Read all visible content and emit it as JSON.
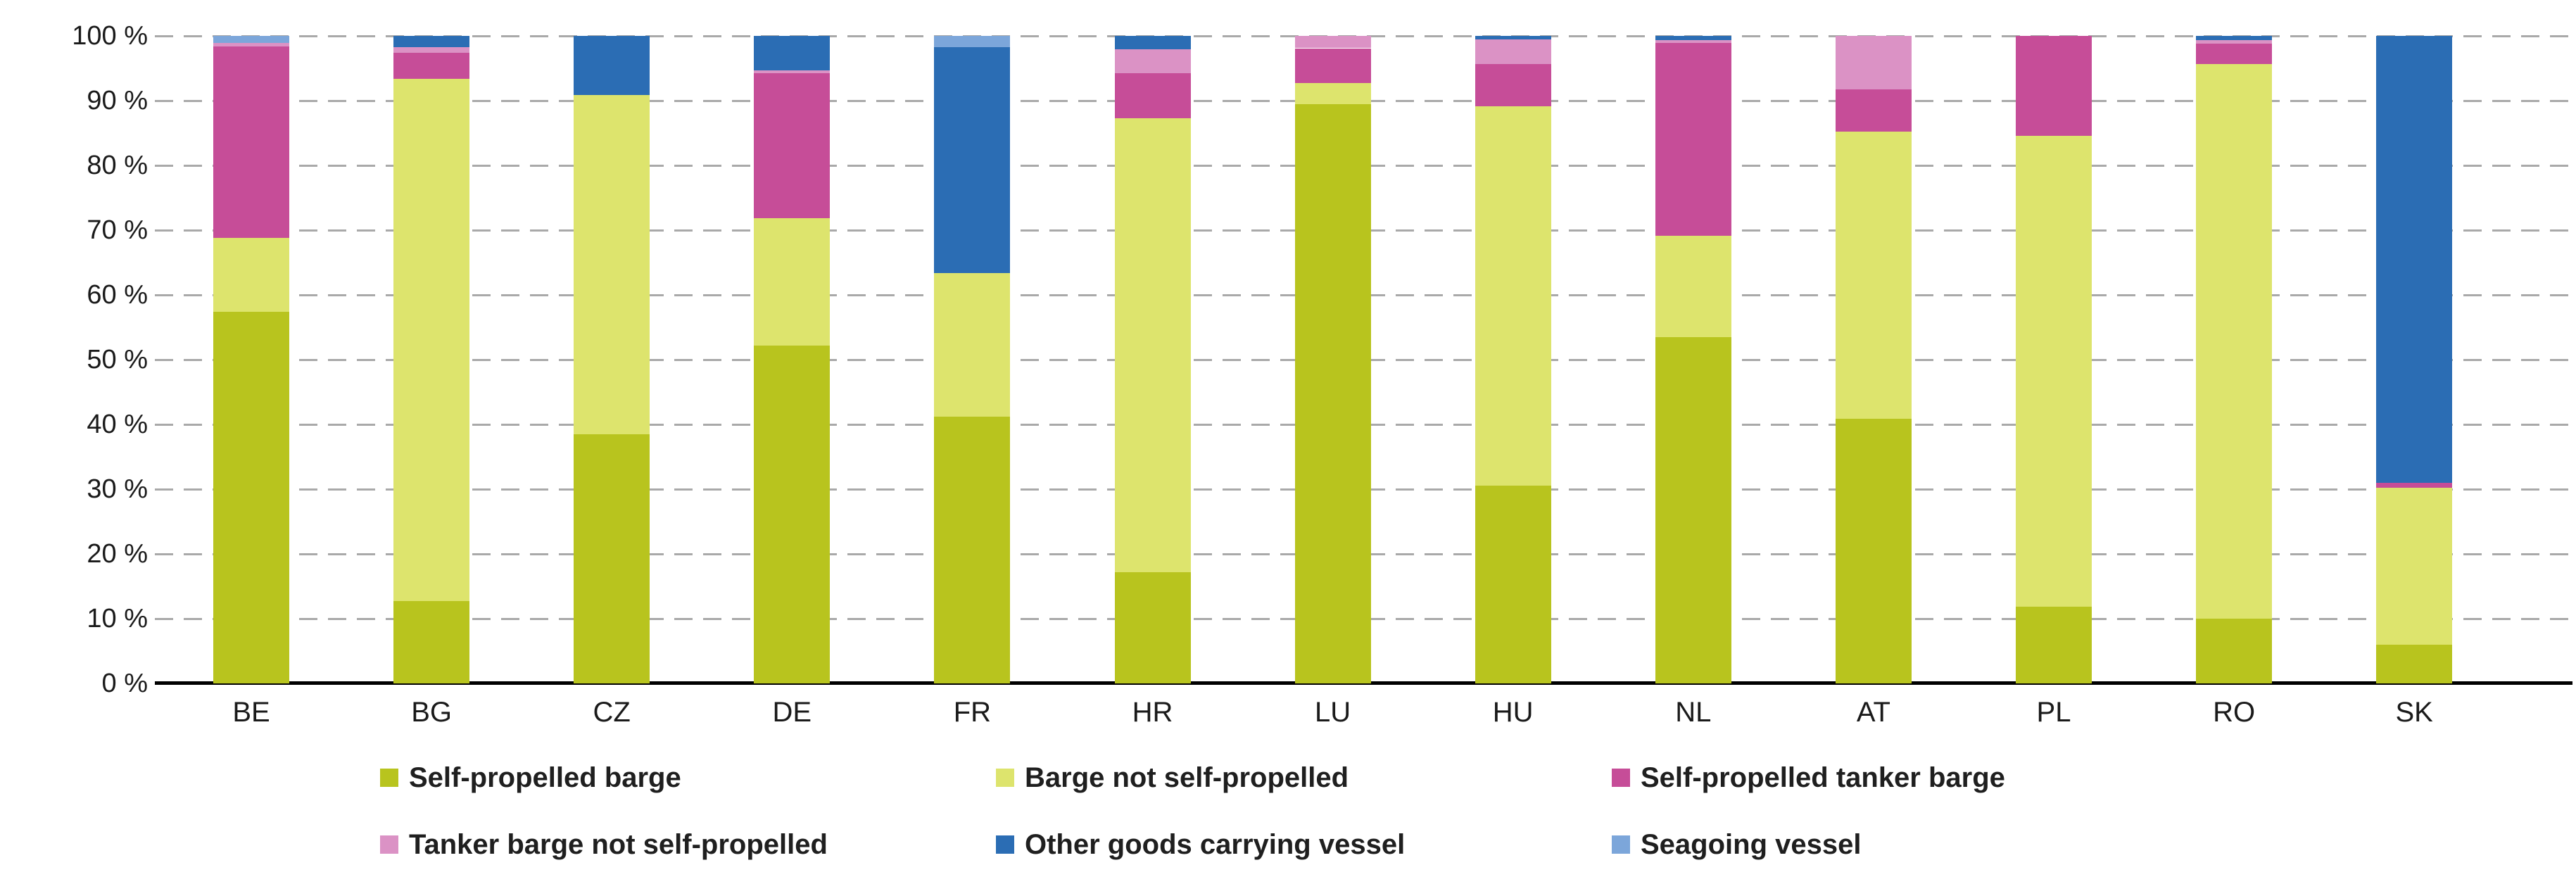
{
  "chart_data": {
    "type": "bar",
    "variant": "stacked-100-percent",
    "title": "",
    "xlabel": "",
    "ylabel": "",
    "ylim": [
      0,
      100
    ],
    "grid": "dashed horizontal gridlines every 10%, solid black baseline at 0%",
    "legend_position": "bottom, two rows, three columns, square markers, bold labels",
    "y_axis": {
      "ticks": [
        "100 %",
        "90 %",
        "80 %",
        "70 %",
        "60 %",
        "50 %",
        "40 %",
        "30 %",
        "20 %",
        "10 %",
        "0 %"
      ]
    },
    "categories": [
      "BE",
      "BG",
      "CZ",
      "DE",
      "FR",
      "HR",
      "LU",
      "HU",
      "NL",
      "AT",
      "PL",
      "RO",
      "SK"
    ],
    "series": [
      {
        "name": "Self-propelled barge",
        "color": "#b8c41e",
        "values": [
          57.4,
          12.7,
          38.5,
          52.2,
          41.2,
          17.2,
          89.5,
          30.5,
          53.5,
          40.9,
          11.8,
          10.0,
          6.0
        ]
      },
      {
        "name": "Barge not self-propelled",
        "color": "#dde46d",
        "values": [
          11.4,
          80.7,
          52.4,
          19.6,
          22.2,
          70.1,
          3.2,
          58.6,
          15.6,
          44.3,
          72.8,
          85.7,
          24.2
        ]
      },
      {
        "name": "Self-propelled tanker barge",
        "color": "#c64d98",
        "values": [
          29.6,
          4.0,
          0,
          22.4,
          0,
          6.9,
          5.4,
          6.5,
          29.8,
          6.5,
          15.4,
          3.1,
          0.8
        ]
      },
      {
        "name": "Tanker barge not self-propelled",
        "color": "#db92c5",
        "values": [
          0.5,
          0.9,
          0,
          0.5,
          0,
          3.7,
          1.9,
          3.9,
          0.5,
          8.3,
          0,
          0.6,
          0
        ]
      },
      {
        "name": "Other goods carrying vessel",
        "color": "#2b6db4",
        "values": [
          0,
          1.7,
          9.1,
          5.3,
          34.9,
          2.1,
          0,
          0.5,
          0.6,
          0,
          0,
          0.6,
          69.0
        ]
      },
      {
        "name": "Seagoing vessel",
        "color": "#7ca6da",
        "values": [
          1.1,
          0,
          0,
          0,
          1.7,
          0,
          0,
          0,
          0,
          0,
          0,
          0,
          0
        ]
      }
    ],
    "legend_rows": [
      [
        0,
        1,
        2
      ],
      [
        3,
        4,
        5
      ]
    ]
  },
  "colors": {
    "gridline": "#a9a9a9",
    "axis": "#000000",
    "tick_text": "#1a1a1a",
    "legend_text": "#1f1f1f",
    "background": "#ffffff"
  }
}
